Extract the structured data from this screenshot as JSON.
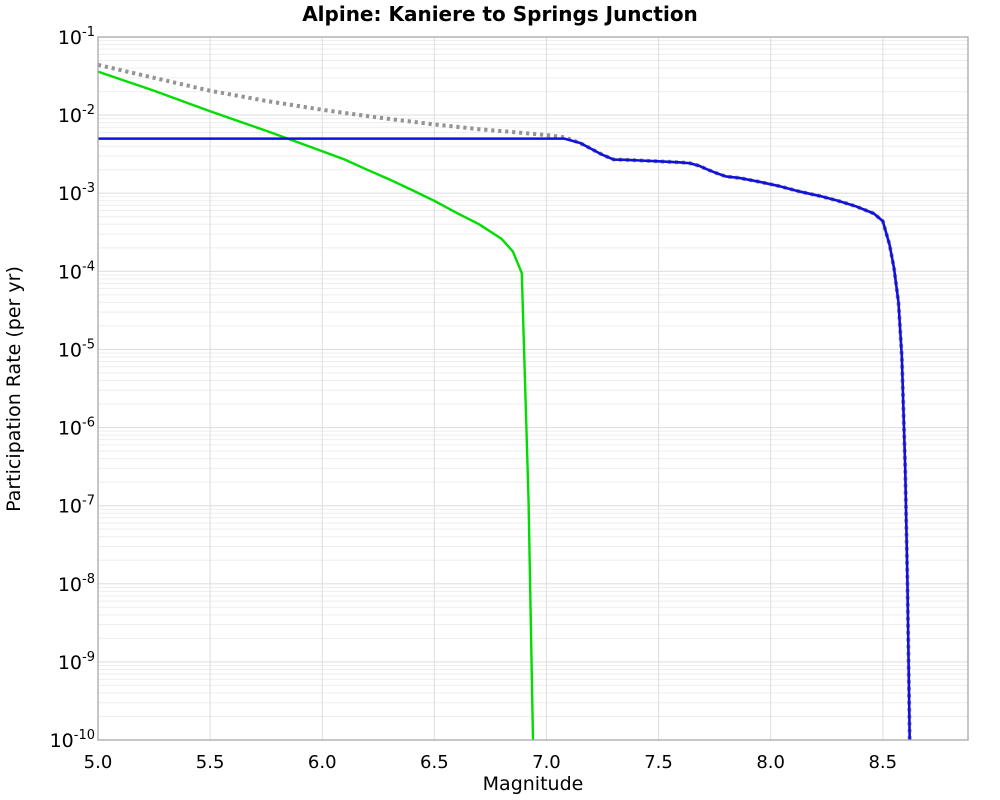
{
  "title": "Alpine: Kaniere to Springs Junction",
  "colors": {
    "background": "#ffffff",
    "plot_border": "#a8a8a8",
    "grid_major": "#e0e0e0",
    "grid_minor": "#ededed",
    "tick_text": "#000000",
    "blue_line": "#1111dd",
    "green_line": "#00dd00",
    "gray_dotted": "#949494"
  },
  "chart_data": {
    "type": "line",
    "title": "Alpine: Kaniere to Springs Junction",
    "xlabel": "Magnitude",
    "ylabel": "Participation Rate (per yr)",
    "x_range": [
      5.0,
      8.88
    ],
    "y_log_range": [
      -10,
      -1
    ],
    "x_tick_values": [
      5.0,
      5.5,
      6.0,
      6.5,
      7.0,
      7.5,
      8.0,
      8.5
    ],
    "x_tick_labels": [
      "5.0",
      "5.5",
      "6.0",
      "6.5",
      "7.0",
      "7.5",
      "8.0",
      "8.5"
    ],
    "y_tick_base": "10",
    "y_tick_exponents": [
      "-1",
      "-2",
      "-3",
      "-4",
      "-5",
      "-6",
      "-7",
      "-8",
      "-9",
      "-10"
    ],
    "grid": {
      "horizontal_major": true,
      "horizontal_minor_log": true,
      "vertical_major": true
    },
    "legend": "none",
    "series": [
      {
        "name": "dotted-gray-total-rate",
        "color": "#949494",
        "style": "dotted",
        "stroke_width": 4,
        "points": [
          [
            5.0,
            0.044
          ],
          [
            5.25,
            0.03
          ],
          [
            5.5,
            0.0205
          ],
          [
            5.75,
            0.0152
          ],
          [
            6.0,
            0.0117
          ],
          [
            6.25,
            0.0093
          ],
          [
            6.5,
            0.0076
          ],
          [
            6.7,
            0.0066
          ],
          [
            6.9,
            0.0059
          ],
          [
            7.0,
            0.00555
          ],
          [
            7.08,
            0.0052
          ],
          [
            7.15,
            0.0044
          ],
          [
            7.2,
            0.0037
          ],
          [
            7.25,
            0.0031
          ],
          [
            7.3,
            0.0027
          ],
          [
            7.35,
            0.00268
          ],
          [
            7.5,
            0.00256
          ],
          [
            7.6,
            0.00248
          ],
          [
            7.64,
            0.00242
          ],
          [
            7.68,
            0.00225
          ],
          [
            7.72,
            0.002
          ],
          [
            7.76,
            0.0018
          ],
          [
            7.8,
            0.00164
          ],
          [
            7.86,
            0.00157
          ],
          [
            7.95,
            0.0014
          ],
          [
            8.04,
            0.00123
          ],
          [
            8.13,
            0.00105
          ],
          [
            8.22,
            0.00092
          ],
          [
            8.3,
            0.0008
          ],
          [
            8.38,
            0.00068
          ],
          [
            8.46,
            0.00055
          ],
          [
            8.5,
            0.00044
          ],
          [
            8.53,
            0.00022
          ],
          [
            8.55,
            0.00011
          ],
          [
            8.57,
            4e-05
          ],
          [
            8.585,
            8e-06
          ],
          [
            8.6,
            3e-07
          ],
          [
            8.61,
            1e-08
          ],
          [
            8.62,
            1e-10
          ]
        ]
      },
      {
        "name": "solid-green-rate",
        "color": "#00dd00",
        "style": "solid",
        "stroke_width": 2.4,
        "points": [
          [
            5.0,
            0.036
          ],
          [
            5.25,
            0.0205
          ],
          [
            5.5,
            0.0112
          ],
          [
            5.75,
            0.0063
          ],
          [
            5.9,
            0.0044
          ],
          [
            6.0,
            0.00345
          ],
          [
            6.1,
            0.0027
          ],
          [
            6.2,
            0.002
          ],
          [
            6.3,
            0.0015
          ],
          [
            6.4,
            0.0011
          ],
          [
            6.5,
            0.0008
          ],
          [
            6.6,
            0.00056
          ],
          [
            6.7,
            0.0004
          ],
          [
            6.8,
            0.00026
          ],
          [
            6.85,
            0.00018
          ],
          [
            6.89,
            9.5e-05
          ],
          [
            6.92,
            1.2e-07
          ],
          [
            6.94,
            1e-10
          ]
        ]
      },
      {
        "name": "solid-blue-participation-rate",
        "color": "#1111dd",
        "style": "solid",
        "stroke_width": 2.6,
        "points": [
          [
            5.0,
            0.005
          ],
          [
            7.08,
            0.005
          ],
          [
            7.15,
            0.0044
          ],
          [
            7.2,
            0.0037
          ],
          [
            7.25,
            0.0031
          ],
          [
            7.3,
            0.0027
          ],
          [
            7.35,
            0.00268
          ],
          [
            7.5,
            0.00256
          ],
          [
            7.6,
            0.00248
          ],
          [
            7.64,
            0.00242
          ],
          [
            7.68,
            0.00225
          ],
          [
            7.72,
            0.002
          ],
          [
            7.76,
            0.0018
          ],
          [
            7.8,
            0.00164
          ],
          [
            7.86,
            0.00157
          ],
          [
            7.95,
            0.0014
          ],
          [
            8.04,
            0.00123
          ],
          [
            8.13,
            0.00105
          ],
          [
            8.22,
            0.00092
          ],
          [
            8.3,
            0.0008
          ],
          [
            8.38,
            0.00068
          ],
          [
            8.46,
            0.00055
          ],
          [
            8.5,
            0.00044
          ],
          [
            8.53,
            0.00022
          ],
          [
            8.55,
            0.00011
          ],
          [
            8.57,
            4e-05
          ],
          [
            8.585,
            8e-06
          ],
          [
            8.6,
            3e-07
          ],
          [
            8.61,
            1e-08
          ],
          [
            8.62,
            1e-10
          ]
        ]
      }
    ]
  }
}
